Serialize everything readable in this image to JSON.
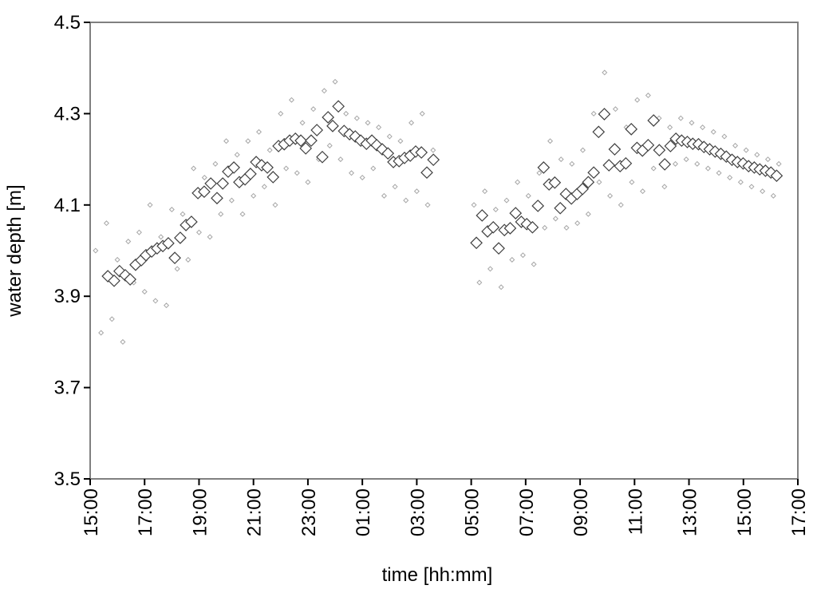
{
  "chart_data": {
    "type": "scatter",
    "x_label": "time [hh:mm]",
    "y_label": "water depth [m]",
    "xlim": [
      0,
      26
    ],
    "xticks": [
      {
        "value": 0,
        "label": "15:00"
      },
      {
        "value": 2,
        "label": "17:00"
      },
      {
        "value": 4,
        "label": "19:00"
      },
      {
        "value": 6,
        "label": "21:00"
      },
      {
        "value": 8,
        "label": "23:00"
      },
      {
        "value": 10,
        "label": "01:00"
      },
      {
        "value": 12,
        "label": "03:00"
      },
      {
        "value": 14,
        "label": "05:00"
      },
      {
        "value": 16,
        "label": "07:00"
      },
      {
        "value": 18,
        "label": "09:00"
      },
      {
        "value": 20,
        "label": "11:00"
      },
      {
        "value": 22,
        "label": "13:00"
      },
      {
        "value": 24,
        "label": "15:00"
      },
      {
        "value": 26,
        "label": "17:00"
      }
    ],
    "ylim": [
      3.5,
      4.5
    ],
    "yticks": [
      3.5,
      3.7,
      3.9,
      4.1,
      4.3,
      4.5
    ],
    "grid": false,
    "series": [
      {
        "color": "#a6a6a6",
        "x": [
          0.2,
          0.4,
          0.6,
          0.8,
          1.0,
          1.2,
          1.4,
          1.6,
          1.8,
          2.0,
          2.2,
          2.4,
          2.6,
          2.8,
          3.0,
          3.2,
          3.4,
          3.6,
          3.8,
          4.0,
          4.2,
          4.4,
          4.6,
          4.8,
          5.0,
          5.2,
          5.4,
          5.6,
          5.8,
          6.0,
          6.2,
          6.4,
          6.6,
          6.8,
          7.0,
          7.2,
          7.4,
          7.6,
          7.8,
          8.0,
          8.2,
          8.4,
          8.6,
          8.8,
          9.0,
          9.2,
          9.4,
          9.6,
          9.8,
          10.0,
          10.2,
          10.4,
          10.6,
          10.8,
          11.0,
          11.2,
          11.4,
          11.6,
          11.8,
          12.0,
          12.2,
          12.4,
          12.6,
          14.1,
          14.3,
          14.5,
          14.7,
          14.9,
          15.1,
          15.3,
          15.5,
          15.7,
          15.9,
          16.1,
          16.3,
          16.5,
          16.7,
          16.9,
          17.1,
          17.3,
          17.5,
          17.7,
          17.9,
          18.1,
          18.3,
          18.5,
          18.7,
          18.9,
          19.1,
          19.3,
          19.5,
          19.7,
          19.9,
          20.1,
          20.3,
          20.5,
          20.7,
          20.9,
          21.1,
          21.3,
          21.5,
          21.7,
          21.9,
          22.1,
          22.3,
          22.5,
          22.7,
          22.9,
          23.1,
          23.3,
          23.5,
          23.7,
          23.9,
          24.1,
          24.3,
          24.5,
          24.7,
          24.9,
          25.1,
          25.3
        ],
        "values": [
          4.0,
          3.82,
          4.06,
          3.85,
          3.98,
          3.8,
          4.02,
          3.93,
          4.04,
          3.91,
          4.1,
          3.89,
          4.03,
          3.88,
          4.09,
          3.96,
          4.08,
          3.98,
          4.18,
          4.04,
          4.16,
          4.03,
          4.19,
          4.08,
          4.24,
          4.11,
          4.21,
          4.08,
          4.24,
          4.12,
          4.26,
          4.14,
          4.22,
          4.1,
          4.3,
          4.18,
          4.33,
          4.17,
          4.28,
          4.15,
          4.31,
          4.2,
          4.35,
          4.23,
          4.37,
          4.2,
          4.3,
          4.17,
          4.29,
          4.16,
          4.28,
          4.18,
          4.27,
          4.12,
          4.25,
          4.14,
          4.24,
          4.11,
          4.28,
          4.13,
          4.3,
          4.1,
          4.22,
          4.1,
          3.93,
          4.13,
          3.96,
          4.09,
          3.92,
          4.11,
          3.98,
          4.15,
          3.99,
          4.12,
          3.97,
          4.17,
          4.05,
          4.24,
          4.07,
          4.2,
          4.05,
          4.19,
          4.06,
          4.22,
          4.08,
          4.3,
          4.15,
          4.39,
          4.12,
          4.31,
          4.1,
          4.27,
          4.15,
          4.33,
          4.13,
          4.34,
          4.18,
          4.29,
          4.14,
          4.27,
          4.19,
          4.29,
          4.2,
          4.28,
          4.19,
          4.27,
          4.18,
          4.26,
          4.17,
          4.25,
          4.16,
          4.23,
          4.15,
          4.22,
          4.14,
          4.21,
          4.13,
          4.2,
          4.12,
          4.19
        ]
      },
      {
        "color": "#ffffff",
        "x": [
          0.65,
          0.88,
          1.08,
          1.29,
          1.47,
          1.67,
          1.88,
          2.05,
          2.26,
          2.46,
          2.67,
          2.87,
          3.11,
          3.31,
          3.52,
          3.72,
          3.96,
          4.19,
          4.43,
          4.66,
          4.87,
          5.07,
          5.28,
          5.48,
          5.69,
          5.89,
          6.1,
          6.3,
          6.51,
          6.72,
          6.92,
          7.13,
          7.33,
          7.54,
          7.74,
          7.92,
          8.12,
          8.33,
          8.53,
          8.74,
          8.91,
          9.12,
          9.33,
          9.53,
          9.74,
          9.94,
          10.15,
          10.35,
          10.53,
          10.73,
          10.94,
          11.14,
          11.35,
          11.55,
          11.76,
          11.96,
          12.17,
          12.37,
          12.61,
          14.19,
          14.4,
          14.6,
          14.81,
          15.01,
          15.22,
          15.43,
          15.63,
          15.84,
          16.04,
          16.25,
          16.45,
          16.66,
          16.86,
          17.07,
          17.27,
          17.48,
          17.68,
          17.89,
          18.09,
          18.3,
          18.5,
          18.68,
          18.89,
          19.06,
          19.27,
          19.47,
          19.68,
          19.88,
          20.09,
          20.29,
          20.5,
          20.7,
          20.91,
          21.11,
          21.32,
          21.52,
          21.73,
          21.94,
          22.14,
          22.35,
          22.55,
          22.76,
          22.96,
          23.17,
          23.37,
          23.58,
          23.78,
          23.99,
          24.19,
          24.4,
          24.6,
          24.81,
          25.01,
          25.22
        ],
        "values": [
          3.944,
          3.934,
          3.955,
          3.946,
          3.937,
          3.969,
          3.979,
          3.99,
          3.998,
          4.005,
          4.01,
          4.016,
          3.984,
          4.028,
          4.056,
          4.063,
          4.126,
          4.129,
          4.147,
          4.115,
          4.147,
          4.173,
          4.182,
          4.15,
          4.156,
          4.168,
          4.194,
          4.187,
          4.182,
          4.161,
          4.229,
          4.233,
          4.241,
          4.245,
          4.241,
          4.224,
          4.241,
          4.264,
          4.205,
          4.292,
          4.273,
          4.316,
          4.262,
          4.255,
          4.25,
          4.241,
          4.234,
          4.241,
          4.231,
          4.222,
          4.213,
          4.194,
          4.196,
          4.203,
          4.208,
          4.217,
          4.215,
          4.171,
          4.199,
          4.017,
          4.077,
          4.042,
          4.051,
          4.005,
          4.045,
          4.049,
          4.082,
          4.063,
          4.058,
          4.051,
          4.098,
          4.182,
          4.145,
          4.149,
          4.093,
          4.124,
          4.114,
          4.124,
          4.135,
          4.15,
          4.171,
          4.26,
          4.299,
          4.187,
          4.222,
          4.185,
          4.191,
          4.266,
          4.225,
          4.219,
          4.231,
          4.285,
          4.22,
          4.189,
          4.229,
          4.245,
          4.241,
          4.238,
          4.234,
          4.233,
          4.227,
          4.222,
          4.217,
          4.212,
          4.206,
          4.199,
          4.194,
          4.191,
          4.185,
          4.182,
          4.178,
          4.175,
          4.171,
          4.164
        ]
      }
    ]
  }
}
